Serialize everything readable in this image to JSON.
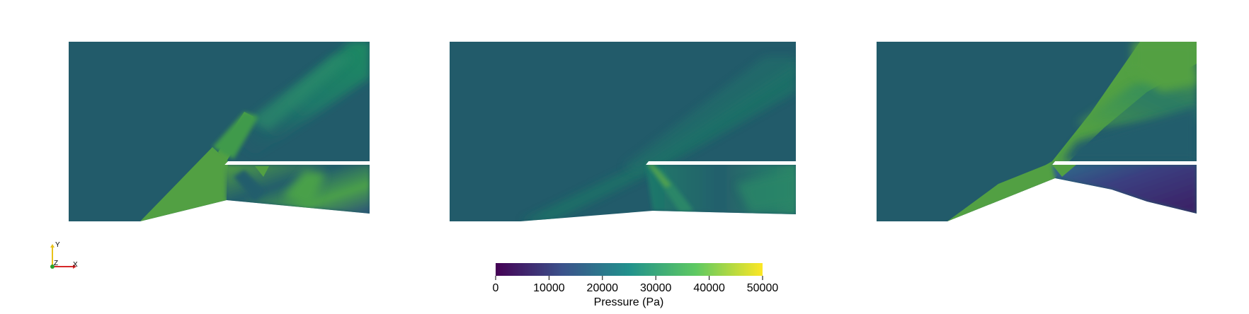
{
  "colorbar": {
    "title": "Pressure (Pa)",
    "min": 0,
    "max": 50000,
    "ticks": [
      "0",
      "10000",
      "20000",
      "30000",
      "40000",
      "50000"
    ],
    "colormap": [
      "#440154",
      "#3b528b",
      "#21918c",
      "#5ec962",
      "#fde725"
    ]
  },
  "orientation_axes": {
    "y_label": "Y",
    "z_label": "Z",
    "x_label": "X",
    "colors": {
      "x": "#d62728",
      "y": "#e8c21a",
      "z": "#2ca02c"
    }
  },
  "field_colors": {
    "freestream": "#225b6a",
    "shock_low": "#1f7a6b",
    "compressed": "#52a043",
    "expansion": "#2a7d72",
    "low": "#3b2b6b"
  },
  "panels": [
    {
      "name": "panel-1"
    },
    {
      "name": "panel-2"
    },
    {
      "name": "panel-3"
    }
  ]
}
